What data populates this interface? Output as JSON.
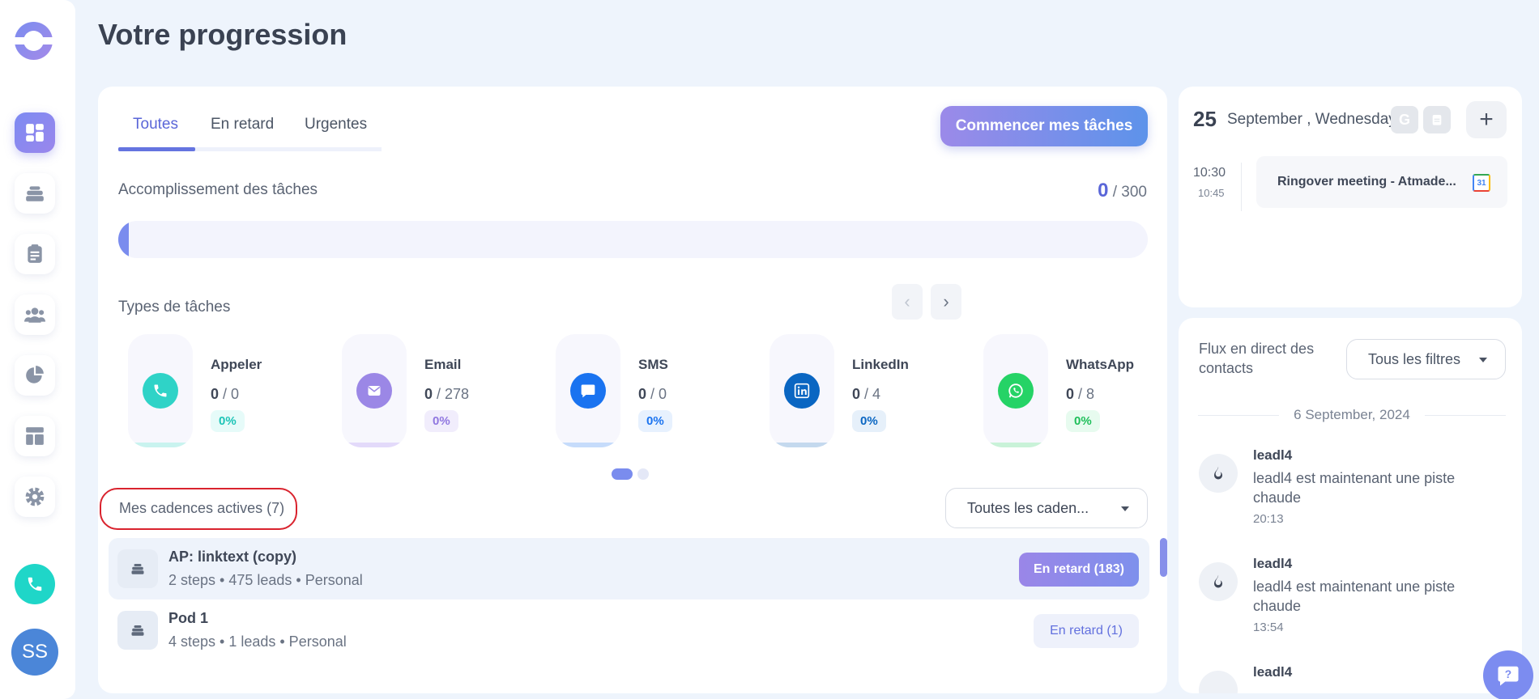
{
  "page": {
    "title": "Votre progression"
  },
  "sidebar": {
    "icons": [
      "dashboard-icon",
      "cadences-icon",
      "tasks-icon",
      "contacts-icon",
      "reports-icon",
      "templates-icon",
      "settings-icon"
    ],
    "avatar_initials": "SS"
  },
  "tabs": [
    {
      "label": "Toutes",
      "active": true
    },
    {
      "label": "En retard",
      "active": false
    },
    {
      "label": "Urgentes",
      "active": false
    }
  ],
  "start_button": "Commencer mes tâches",
  "accomplishment": {
    "label": "Accomplissement des tâches",
    "done": "0",
    "total": "/ 300",
    "progress": 0
  },
  "task_types": {
    "label": "Types de tâches",
    "items": [
      {
        "name": "Appeler",
        "done": "0",
        "total": "/ 0",
        "pct": "0%",
        "color": "#2fd3c7",
        "pct_bg": "#e6fbf9",
        "pct_color": "#1dc4b7",
        "stripe": "#c9f3ef",
        "icon": "phone-icon"
      },
      {
        "name": "Email",
        "done": "0",
        "total": "/ 278",
        "pct": "0%",
        "color": "#9b87e6",
        "pct_bg": "#f1edfc",
        "pct_color": "#9077e0",
        "stripe": "#e3dafa",
        "icon": "email-icon"
      },
      {
        "name": "SMS",
        "done": "0",
        "total": "/ 0",
        "pct": "0%",
        "color": "#1a73f0",
        "pct_bg": "#e7f1fe",
        "pct_color": "#1a73f0",
        "stripe": "#c6dcfb",
        "icon": "sms-icon"
      },
      {
        "name": "LinkedIn",
        "done": "0",
        "total": "/ 4",
        "pct": "0%",
        "color": "#0a66c2",
        "pct_bg": "#e6f0fa",
        "pct_color": "#0a66c2",
        "stripe": "#c4d9ee",
        "icon": "linkedin-icon"
      },
      {
        "name": "WhatsApp",
        "done": "0",
        "total": "/ 8",
        "pct": "0%",
        "color": "#25d366",
        "pct_bg": "#e7fbef",
        "pct_color": "#1fbf5a",
        "stripe": "#c9f2d8",
        "icon": "whatsapp-icon"
      }
    ]
  },
  "cadences": {
    "label": "Mes cadences actives (7)",
    "filter": "Toutes les caden...",
    "items": [
      {
        "name": "AP: linktext (copy)",
        "meta": "2 steps • 475 leads • Personal",
        "badge": "En retard (183)",
        "highlight": true
      },
      {
        "name": "Pod 1",
        "meta": "4 steps • 1 leads • Personal",
        "badge": "En retard (1)",
        "highlight": false
      }
    ]
  },
  "calendar": {
    "day": "25",
    "date": "September , Wednesday",
    "event": {
      "start": "10:30",
      "end": "10:45",
      "title": "Ringover meeting - Atmade..."
    }
  },
  "feed": {
    "title": "Flux en direct des contacts",
    "filter": "Tous les filtres",
    "date": "6 September, 2024",
    "items": [
      {
        "name": "leadl4",
        "desc": "leadl4 est maintenant une piste chaude",
        "time": "20:13"
      },
      {
        "name": "leadl4",
        "desc": "leadl4 est maintenant une piste chaude",
        "time": "13:54"
      },
      {
        "name": "leadl4"
      }
    ]
  },
  "colors": {
    "accent": "#6574e0",
    "late_badge_bg": "#8e8ae8",
    "late_badge_light_bg": "#eef1fb"
  }
}
